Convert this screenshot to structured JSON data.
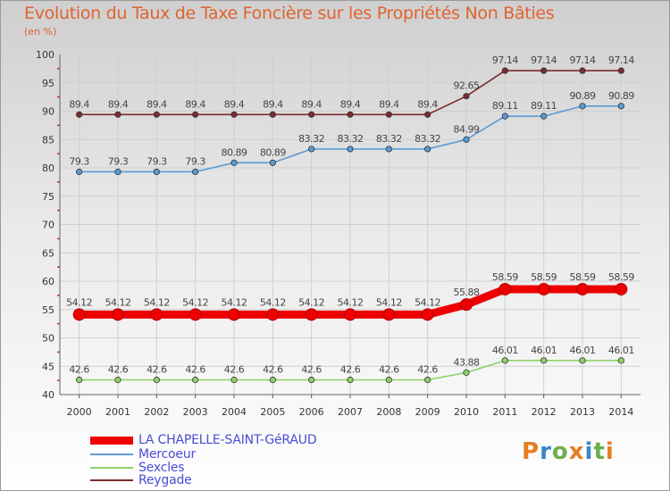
{
  "title": "Evolution du Taux de Taxe Foncière sur les Propriétés Non Bâties",
  "unit_label": "(en %)",
  "logo": {
    "letters": [
      "P",
      "r",
      "o",
      "x",
      "i",
      "t",
      "i"
    ],
    "colors": [
      "#e67e22",
      "#3a86c8",
      "#6ab04c",
      "#e67e22",
      "#3a86c8",
      "#6ab04c",
      "#e67e22"
    ]
  },
  "chart_data": {
    "type": "line",
    "x": [
      2000,
      2001,
      2002,
      2003,
      2004,
      2005,
      2006,
      2007,
      2008,
      2009,
      2010,
      2011,
      2012,
      2013,
      2014
    ],
    "ylim": [
      40,
      100
    ],
    "yticks": [
      40,
      45,
      50,
      55,
      60,
      65,
      70,
      75,
      80,
      85,
      90,
      95,
      100
    ],
    "grid": true,
    "legend_position": "bottom-left",
    "series": [
      {
        "name": "LA CHAPELLE-SAINT-GéRAUD",
        "color": "#ee0000",
        "bold": true,
        "values": [
          54.12,
          54.12,
          54.12,
          54.12,
          54.12,
          54.12,
          54.12,
          54.12,
          54.12,
          54.12,
          55.88,
          58.59,
          58.59,
          58.59,
          58.59
        ],
        "labels": [
          "54.12",
          "54.12",
          "54.12",
          "54.12",
          "54.12",
          "54.12",
          "54.12",
          "54.12",
          "54.12",
          "54.12",
          "55.88",
          "58.59",
          "58.59",
          "58.59",
          "58.59"
        ]
      },
      {
        "name": "Mercoeur",
        "color": "#5b9bd5",
        "bold": false,
        "values": [
          79.3,
          79.3,
          79.3,
          79.3,
          80.89,
          80.89,
          83.32,
          83.32,
          83.32,
          83.32,
          84.99,
          89.11,
          89.11,
          90.89,
          90.89
        ],
        "labels": [
          "79.3",
          "79.3",
          "79.3",
          "79.3",
          "80.89",
          "80.89",
          "83.32",
          "83.32",
          "83.32",
          "83.32",
          "84.99",
          "89.11",
          "89.11",
          "90.89",
          "90.89"
        ]
      },
      {
        "name": "Sexcles",
        "color": "#8fd16a",
        "bold": false,
        "values": [
          42.6,
          42.6,
          42.6,
          42.6,
          42.6,
          42.6,
          42.6,
          42.6,
          42.6,
          42.6,
          43.88,
          46.01,
          46.01,
          46.01,
          46.01
        ],
        "labels": [
          "42.6",
          "42.6",
          "42.6",
          "42.6",
          "42.6",
          "42.6",
          "42.6",
          "42.6",
          "42.6",
          "42.6",
          "43.88",
          "46.01",
          "46.01",
          "46.01",
          "46.01"
        ]
      },
      {
        "name": "Reygade",
        "color": "#7b2c2c",
        "bold": false,
        "values": [
          89.4,
          89.4,
          89.4,
          89.4,
          89.4,
          89.4,
          89.4,
          89.4,
          89.4,
          89.4,
          92.65,
          97.14,
          97.14,
          97.14,
          97.14
        ],
        "labels": [
          "89.4",
          "89.4",
          "89.4",
          "89.4",
          "89.4",
          "89.4",
          "89.4",
          "89.4",
          "89.4",
          "89.4",
          "92.65",
          "97.14",
          "97.14",
          "97.14",
          "97.14"
        ]
      }
    ]
  }
}
